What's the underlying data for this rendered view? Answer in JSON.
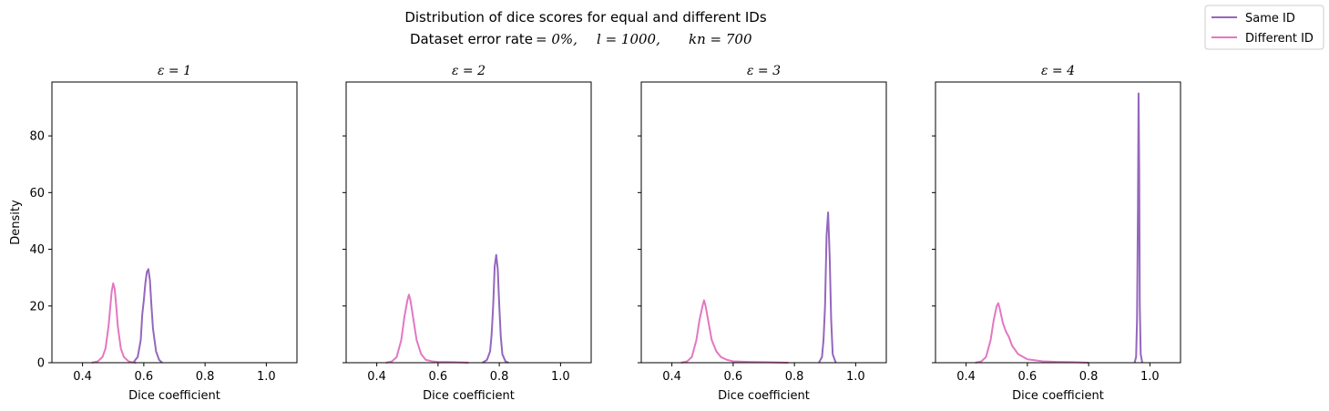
{
  "figure": {
    "title_line1": "Distribution of dice scores for equal and different IDs",
    "title_line2_prefix": "Dataset error rate",
    "title_line2_math_a": "= 0%,",
    "title_line2_math_b": "l = 1000,",
    "title_line2_math_c": "kn = 700"
  },
  "legend": {
    "placement": "upper-right",
    "items": [
      {
        "label": "Same ID",
        "color": "#9467bd"
      },
      {
        "label": "Different ID",
        "color": "#e377c2"
      }
    ]
  },
  "chart_data": [
    {
      "type": "line",
      "title": "ε = 1",
      "xlabel": "Dice coefficient",
      "ylabel": "Density",
      "xlim": [
        0.3,
        1.1
      ],
      "ylim": [
        0,
        99
      ],
      "xticks": [
        0.4,
        0.6,
        0.8,
        1.0
      ],
      "xtick_labels": [
        "0.4",
        "0.6",
        "0.8",
        "1.0"
      ],
      "yticks": [
        0,
        20,
        40,
        60,
        80
      ],
      "ytick_labels": [
        "0",
        "20",
        "40",
        "60",
        "80"
      ],
      "show_ytick_labels": true,
      "series": [
        {
          "name": "Same ID",
          "color": "#9467bd",
          "x": [
            0.565,
            0.58,
            0.59,
            0.595,
            0.6,
            0.605,
            0.61,
            0.615,
            0.62,
            0.625,
            0.63,
            0.64,
            0.65,
            0.66
          ],
          "y": [
            0,
            2,
            8,
            17,
            22,
            28,
            32,
            33,
            29,
            20,
            12,
            4,
            1,
            0
          ]
        },
        {
          "name": "Different ID",
          "color": "#e377c2",
          "x": [
            0.43,
            0.45,
            0.465,
            0.475,
            0.485,
            0.49,
            0.495,
            0.5,
            0.505,
            0.51,
            0.515,
            0.525,
            0.535,
            0.55,
            0.56,
            0.575
          ],
          "y": [
            0,
            0.5,
            2,
            5,
            13,
            19,
            25,
            28,
            26,
            20,
            13,
            5,
            2,
            0.5,
            0.2,
            0
          ]
        }
      ]
    },
    {
      "type": "line",
      "title": "ε = 2",
      "xlabel": "Dice coefficient",
      "ylabel": "",
      "xlim": [
        0.3,
        1.1
      ],
      "ylim": [
        0,
        99
      ],
      "xticks": [
        0.4,
        0.6,
        0.8,
        1.0
      ],
      "xtick_labels": [
        "0.4",
        "0.6",
        "0.8",
        "1.0"
      ],
      "yticks": [
        0,
        20,
        40,
        60,
        80
      ],
      "ytick_labels": [
        "0",
        "20",
        "40",
        "60",
        "80"
      ],
      "show_ytick_labels": false,
      "series": [
        {
          "name": "Same ID",
          "color": "#9467bd",
          "x": [
            0.745,
            0.76,
            0.77,
            0.775,
            0.78,
            0.785,
            0.79,
            0.795,
            0.8,
            0.805,
            0.81,
            0.82,
            0.83
          ],
          "y": [
            0,
            1,
            4,
            10,
            20,
            34,
            38,
            33,
            20,
            9,
            3,
            0.5,
            0
          ]
        },
        {
          "name": "Different ID",
          "color": "#e377c2",
          "x": [
            0.43,
            0.45,
            0.465,
            0.48,
            0.49,
            0.5,
            0.505,
            0.51,
            0.52,
            0.53,
            0.545,
            0.56,
            0.58,
            0.6,
            0.65,
            0.7
          ],
          "y": [
            0,
            0.5,
            2,
            8,
            16,
            22,
            24,
            22,
            15,
            8,
            3,
            1,
            0.5,
            0.3,
            0.2,
            0
          ]
        }
      ]
    },
    {
      "type": "line",
      "title": "ε = 3",
      "xlabel": "Dice coefficient",
      "ylabel": "",
      "xlim": [
        0.3,
        1.1
      ],
      "ylim": [
        0,
        99
      ],
      "xticks": [
        0.4,
        0.6,
        0.8,
        1.0
      ],
      "xtick_labels": [
        "0.4",
        "0.6",
        "0.8",
        "1.0"
      ],
      "yticks": [
        0,
        20,
        40,
        60,
        80
      ],
      "ytick_labels": [
        "0",
        "20",
        "40",
        "60",
        "80"
      ],
      "show_ytick_labels": false,
      "series": [
        {
          "name": "Same ID",
          "color": "#9467bd",
          "x": [
            0.88,
            0.89,
            0.895,
            0.9,
            0.905,
            0.91,
            0.915,
            0.92,
            0.925,
            0.935
          ],
          "y": [
            0,
            2,
            8,
            20,
            45,
            53,
            38,
            15,
            3,
            0
          ]
        },
        {
          "name": "Different ID",
          "color": "#e377c2",
          "x": [
            0.43,
            0.45,
            0.465,
            0.48,
            0.49,
            0.5,
            0.505,
            0.51,
            0.52,
            0.53,
            0.545,
            0.56,
            0.58,
            0.6,
            0.65,
            0.7,
            0.75,
            0.78
          ],
          "y": [
            0,
            0.5,
            2,
            8,
            15,
            20,
            22,
            20,
            14,
            8,
            4,
            2,
            1,
            0.5,
            0.3,
            0.2,
            0.1,
            0
          ]
        }
      ]
    },
    {
      "type": "line",
      "title": "ε = 4",
      "xlabel": "Dice coefficient",
      "ylabel": "",
      "xlim": [
        0.3,
        1.1
      ],
      "ylim": [
        0,
        99
      ],
      "xticks": [
        0.4,
        0.6,
        0.8,
        1.0
      ],
      "xtick_labels": [
        "0.4",
        "0.6",
        "0.8",
        "1.0"
      ],
      "yticks": [
        0,
        20,
        40,
        60,
        80
      ],
      "ytick_labels": [
        "0",
        "20",
        "40",
        "60",
        "80"
      ],
      "show_ytick_labels": false,
      "series": [
        {
          "name": "Same ID",
          "color": "#9467bd",
          "x": [
            0.95,
            0.955,
            0.958,
            0.961,
            0.963,
            0.965,
            0.967,
            0.97,
            0.975
          ],
          "y": [
            0,
            2,
            15,
            55,
            95,
            70,
            20,
            3,
            0
          ]
        },
        {
          "name": "Different ID",
          "color": "#e377c2",
          "x": [
            0.43,
            0.45,
            0.465,
            0.48,
            0.49,
            0.5,
            0.505,
            0.51,
            0.52,
            0.53,
            0.54,
            0.55,
            0.57,
            0.6,
            0.65,
            0.7,
            0.75,
            0.8
          ],
          "y": [
            0,
            0.5,
            2,
            8,
            15,
            20,
            21,
            19,
            14,
            11,
            9,
            6,
            3,
            1.2,
            0.5,
            0.3,
            0.2,
            0
          ]
        }
      ]
    }
  ]
}
